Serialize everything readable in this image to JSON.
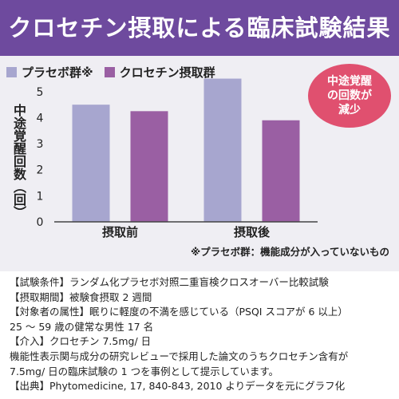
{
  "header": {
    "title": "クロセチン摂取による臨床試験結果"
  },
  "legend": [
    {
      "label": "プラセボ群※",
      "color": "#a7a6cf"
    },
    {
      "label": "クロセチン摂取群",
      "color": "#9a5fa3"
    }
  ],
  "callout": {
    "text": "中途覚醒\nの回数が\n減少",
    "color": "#e0506f"
  },
  "footnote": "※プラセボ群：機能成分が入っていないもの",
  "chart_data": {
    "type": "bar",
    "categories": [
      "摂取前",
      "摂取後"
    ],
    "series": [
      {
        "name": "プラセボ群※",
        "values": [
          4.5,
          5.5
        ],
        "color": "#a7a6cf"
      },
      {
        "name": "クロセチン摂取群",
        "values": [
          4.25,
          3.9
        ],
        "color": "#9a5fa3"
      }
    ],
    "ylabel": "中途覚醒回数（回）",
    "ylim": [
      0,
      5.7
    ],
    "yticks": [
      0,
      1,
      2,
      3,
      4,
      5
    ],
    "grid": false,
    "legend_position": "top-left"
  },
  "conditions": [
    "【試験条件】ランダム化プラセボ対照二重盲検クロスオーバー比較試験",
    "【摂取期間】被験食摂取 2 週間",
    "【対象者の属性】眠りに軽度の不満を感じている（PSQI スコアが 6 以上）",
    "25 ～ 59 歳の健常な男性 17 名",
    "【介入】クロセチン 7.5mg/ 日",
    "機能性表示関与成分の研究レビューで採用した論文のうちクロセチン含有が",
    "7.5mg/ 日の臨床試験の 1 つを事例として提示しています。",
    "【出典】Phytomedicine, 17, 840-843, 2010 よりデータを元にグラフ化"
  ]
}
